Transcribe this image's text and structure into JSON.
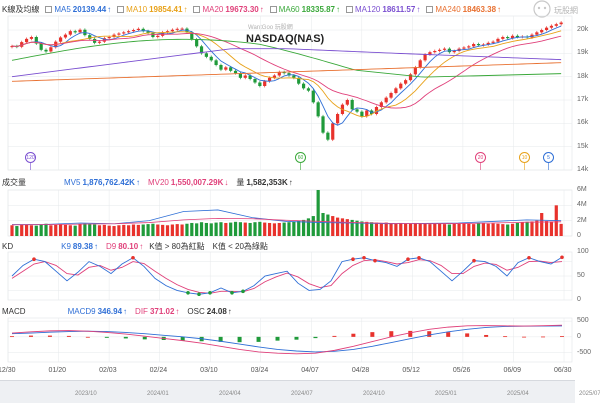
{
  "main_legend": {
    "title": "K線及均線",
    "items": [
      {
        "label": "MA5",
        "value": "20139.44",
        "arrow": "↑",
        "color": "#2f6fd6"
      },
      {
        "label": "MA10",
        "value": "19854.41",
        "arrow": "↑",
        "color": "#e8a21a"
      },
      {
        "label": "MA20",
        "value": "19673.30",
        "arrow": "↑",
        "color": "#e0407a"
      },
      {
        "label": "MA60",
        "value": "18335.87",
        "arrow": "↑",
        "color": "#3aa83a"
      },
      {
        "label": "MA120",
        "value": "18611.57",
        "arrow": "↑",
        "color": "#7a4fd0"
      },
      {
        "label": "MA240",
        "value": "18463.38",
        "arrow": "↑",
        "color": "#e87030"
      }
    ]
  },
  "watermark": "WantGoo 玩股網",
  "chart_title": "NASDAQ(NAS)",
  "logo_text": "玩股網",
  "volume_legend": {
    "title": "成交量",
    "items": [
      {
        "label": "MV5",
        "value": "1,876,762.42K",
        "arrow": "↑",
        "color": "#2f6fd6"
      },
      {
        "label": "MV20",
        "value": "1,550,007.29K",
        "arrow": "↓",
        "color": "#e0407a"
      },
      {
        "label": "量",
        "value": "1,582,353K",
        "arrow": "↑",
        "color": "#333333"
      }
    ]
  },
  "kd_legend": {
    "title": "KD",
    "items": [
      {
        "label": "K9",
        "value": "89.38",
        "arrow": "↑",
        "color": "#2f6fd6"
      },
      {
        "label": "D9",
        "value": "80.10",
        "arrow": "↑",
        "color": "#e0407a"
      }
    ],
    "notes": [
      "K值 > 80為紅點",
      "K值 < 20為綠點"
    ]
  },
  "macd_legend": {
    "title": "MACD",
    "items": [
      {
        "label": "MACD9",
        "value": "346.94",
        "arrow": "↑",
        "color": "#2f6fd6"
      },
      {
        "label": "DIF",
        "value": "371.02",
        "arrow": "↑",
        "color": "#e0407a"
      },
      {
        "label": "OSC",
        "value": "24.08",
        "arrow": "↑",
        "color": "#333333"
      }
    ]
  },
  "x_labels": [
    "12/30",
    "01/20",
    "02/03",
    "02/24",
    "03/10",
    "03/24",
    "04/07",
    "04/28",
    "05/12",
    "05/26",
    "06/09",
    "06/30"
  ],
  "nav_labels": [
    "2023/10",
    "2024/01",
    "2024/04",
    "2024/07",
    "2024/10",
    "2025/01",
    "2025/04",
    "2025/07"
  ],
  "markers": [
    {
      "label": "120",
      "color": "#7a4fd0"
    },
    {
      "label": "60",
      "color": "#3aa83a"
    },
    {
      "label": "20",
      "color": "#e0407a"
    },
    {
      "label": "10",
      "color": "#e8a21a"
    },
    {
      "label": "5",
      "color": "#2f6fd6"
    }
  ],
  "colors": {
    "up": "#e8322c",
    "down": "#1f9a3a",
    "grid": "#e6e8eb",
    "kd_k": "#2f6fd6",
    "kd_d": "#e0407a"
  },
  "chart_data": [
    {
      "type": "candlestick",
      "title": "NASDAQ(NAS)",
      "y_ticks": [
        "20k",
        "19k",
        "18k",
        "17k",
        "16k",
        "15k",
        "14k"
      ],
      "ylim": [
        14000,
        20600
      ],
      "x_ticks": [
        "12/30",
        "01/20",
        "02/03",
        "02/24",
        "03/10",
        "03/24",
        "04/07",
        "04/28",
        "05/12",
        "05/26",
        "06/09",
        "06/30"
      ],
      "close": [
        19310,
        19280,
        19480,
        19620,
        19700,
        19420,
        19150,
        19080,
        19260,
        19500,
        19680,
        19800,
        19950,
        19900,
        20010,
        19780,
        19620,
        19450,
        19500,
        19650,
        19700,
        19800,
        19850,
        19900,
        19950,
        20000,
        20050,
        19950,
        19870,
        19700,
        19750,
        19900,
        19950,
        20010,
        20050,
        20060,
        19900,
        19600,
        19300,
        19000,
        18850,
        18700,
        18500,
        18300,
        18400,
        18250,
        18150,
        17950,
        18050,
        17900,
        17750,
        17600,
        17800,
        17950,
        18050,
        18200,
        18150,
        18050,
        17950,
        17700,
        17500,
        17400,
        16900,
        16300,
        15600,
        15300,
        16000,
        16400,
        16800,
        17000,
        16600,
        16500,
        16300,
        16550,
        16400,
        16700,
        16900,
        17100,
        17300,
        17500,
        17700,
        17850,
        18100,
        18400,
        18700,
        18950,
        19050,
        19100,
        19150,
        19200,
        19050,
        19100,
        19200,
        19250,
        19300,
        19400,
        19350,
        19380,
        19450,
        19500,
        19620,
        19700,
        19650,
        19750,
        19700,
        19720,
        19680,
        19800,
        19900,
        20000,
        20100,
        20180,
        20250,
        20320
      ]
    },
    {
      "type": "bar",
      "title": "成交量",
      "y_ticks": [
        "6M",
        "4M",
        "2M",
        "0"
      ],
      "ylim": [
        0,
        6000000
      ],
      "values": [
        1400000,
        1300000,
        1500000,
        1450000,
        1400000,
        1350000,
        1500000,
        1600000,
        1400000,
        1450000,
        1500000,
        1450000,
        1400000,
        1350000,
        1500000,
        1600000,
        1550000,
        1500000,
        1400000,
        1450000,
        1350000,
        1300000,
        1400000,
        1450000,
        1400000,
        1500000,
        1450000,
        1500000,
        1550000,
        1600000,
        1500000,
        1450000,
        1400000,
        1500000,
        1550000,
        1500000,
        1600000,
        1700000,
        1650000,
        1800000,
        1700000,
        1650000,
        1750000,
        1800000,
        1700000,
        1750000,
        1850000,
        1800000,
        1750000,
        1700000,
        1800000,
        1850000,
        1750000,
        1700000,
        1650000,
        1700000,
        1750000,
        1800000,
        1900000,
        2000000,
        2100000,
        2300000,
        2600000,
        6000000,
        3000000,
        2800000,
        2600000,
        2400000,
        2300000,
        2200000,
        2100000,
        2000000,
        1900000,
        1850000,
        1800000,
        1750000,
        1700000,
        1750000,
        1650000,
        1600000,
        1700000,
        1650000,
        1600000,
        1700000,
        1650000,
        1600000,
        1550000,
        1600000,
        1650000,
        1550000,
        1500000,
        1600000,
        1650000,
        1700000,
        1600000,
        1550000,
        1650000,
        1700000,
        1600000,
        1650000,
        1600000,
        1550000,
        1500000,
        1600000,
        1700000,
        1800000,
        1850000,
        1900000,
        2000000,
        3000000,
        1950000,
        1900000,
        4000000,
        1582353
      ],
      "mv5": [
        1500000,
        1520000,
        1700000,
        1600000,
        2000000,
        3200000,
        3400000,
        2400000,
        1900000,
        1750000,
        1680000,
        1600000,
        1650000,
        1700000,
        1900000,
        2100000,
        2000000
      ],
      "mv20": [
        1450000,
        1480000,
        1550000,
        1600000,
        1750000,
        2100000,
        2300000,
        2250000,
        2050000,
        1900000,
        1750000,
        1650000,
        1600000,
        1620000,
        1700000,
        1800000,
        1850000
      ]
    },
    {
      "type": "line",
      "title": "KD",
      "y_ticks": [
        "100",
        "50",
        "0"
      ],
      "ylim": [
        0,
        100
      ],
      "series": [
        {
          "name": "K9",
          "values": [
            50,
            72,
            85,
            80,
            60,
            40,
            58,
            80,
            70,
            55,
            75,
            88,
            70,
            45,
            30,
            20,
            15,
            12,
            15,
            25,
            15,
            18,
            30,
            50,
            55,
            60,
            35,
            20,
            22,
            40,
            80,
            85,
            88,
            82,
            78,
            70,
            85,
            88,
            80,
            60,
            40,
            60,
            82,
            80,
            70,
            50,
            78,
            88,
            80,
            75,
            89
          ]
        },
        {
          "name": "D9",
          "values": [
            45,
            60,
            75,
            80,
            72,
            55,
            52,
            68,
            72,
            62,
            68,
            80,
            76,
            60,
            45,
            32,
            22,
            16,
            14,
            18,
            18,
            17,
            24,
            38,
            48,
            56,
            48,
            34,
            26,
            30,
            55,
            72,
            82,
            84,
            80,
            75,
            78,
            84,
            82,
            72,
            55,
            55,
            70,
            77,
            74,
            62,
            68,
            80,
            81,
            78,
            80
          ]
        }
      ]
    },
    {
      "type": "line",
      "title": "MACD",
      "y_ticks": [
        "500",
        "0",
        "-500"
      ],
      "ylim": [
        -800,
        600
      ],
      "series": [
        {
          "name": "MACD9",
          "values": [
            100,
            120,
            150,
            170,
            180,
            170,
            140,
            100,
            50,
            0,
            -60,
            -140,
            -230,
            -320,
            -400,
            -450,
            -480,
            -460,
            -400,
            -300,
            -180,
            -60,
            60,
            160,
            240,
            300,
            330,
            340,
            345,
            347
          ]
        },
        {
          "name": "DIF",
          "values": [
            120,
            160,
            190,
            200,
            180,
            140,
            90,
            20,
            -50,
            -120,
            -200,
            -300,
            -400,
            -480,
            -520,
            -540,
            -520,
            -430,
            -300,
            -150,
            0,
            130,
            240,
            310,
            350,
            360,
            350,
            345,
            355,
            371
          ]
        }
      ],
      "osc": [
        20,
        40,
        40,
        30,
        0,
        -30,
        -50,
        -80,
        -100,
        -120,
        -140,
        -160,
        -170,
        -160,
        -120,
        -90,
        -40,
        30,
        100,
        150,
        180,
        190,
        180,
        150,
        110,
        60,
        20,
        5,
        10,
        24
      ]
    }
  ]
}
